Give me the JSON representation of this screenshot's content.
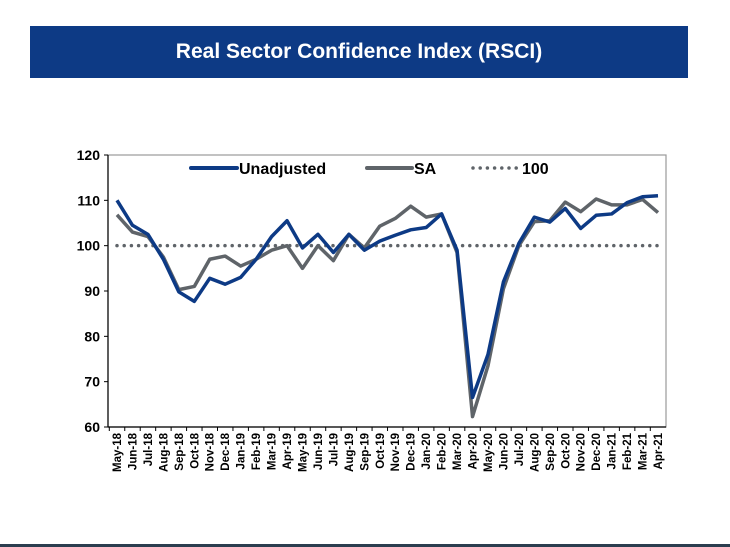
{
  "title": "Real Sector Confidence Index (RSCI)",
  "chart_data": {
    "type": "line",
    "title": "",
    "ylim": [
      60,
      120
    ],
    "yticks": [
      60,
      70,
      80,
      90,
      100,
      110,
      120
    ],
    "grid": false,
    "legend_placement": "top",
    "categories": [
      "May-18",
      "Jun-18",
      "Jul-18",
      "Aug-18",
      "Sep-18",
      "Oct-18",
      "Nov-18",
      "Dec-18",
      "Jan-19",
      "Feb-19",
      "Mar-19",
      "Apr-19",
      "May-19",
      "Jun-19",
      "Jul-19",
      "Aug-19",
      "Sep-19",
      "Oct-19",
      "Nov-19",
      "Dec-19",
      "Jan-20",
      "Feb-20",
      "Mar-20",
      "Apr-20",
      "May-20",
      "Jun-20",
      "Jul-20",
      "Aug-20",
      "Sep-20",
      "Oct-20",
      "Nov-20",
      "Dec-20",
      "Jan-21",
      "Feb-21",
      "Mar-21",
      "Apr-21"
    ],
    "series": [
      {
        "name": "Unadjusted",
        "color": "#0d3a85",
        "values": [
          110,
          104.5,
          102.5,
          97,
          89.8,
          87.7,
          92.8,
          91.5,
          93,
          97,
          102,
          105.5,
          99.5,
          102.5,
          98.5,
          102.5,
          99,
          101,
          102.3,
          103.5,
          104,
          107,
          99,
          66.5,
          76,
          92,
          100.5,
          106.3,
          105.2,
          108.2,
          103.8,
          106.7,
          107,
          109.5,
          110.8,
          111
        ]
      },
      {
        "name": "SA",
        "color": "#5f6469",
        "values": [
          106.8,
          103,
          102,
          97.5,
          90.3,
          91,
          97,
          97.7,
          95.5,
          97,
          99,
          100,
          95,
          100,
          96.7,
          102.5,
          99.5,
          104.3,
          106,
          108.7,
          106.3,
          107,
          98.5,
          62.3,
          73.5,
          90.5,
          100,
          105.3,
          105.5,
          109.6,
          107.5,
          110.3,
          109,
          109,
          110.2,
          107.3
        ]
      }
    ],
    "reference_line": {
      "name": "100",
      "value": 100,
      "color": "#5f6469",
      "style": "dotted"
    }
  }
}
